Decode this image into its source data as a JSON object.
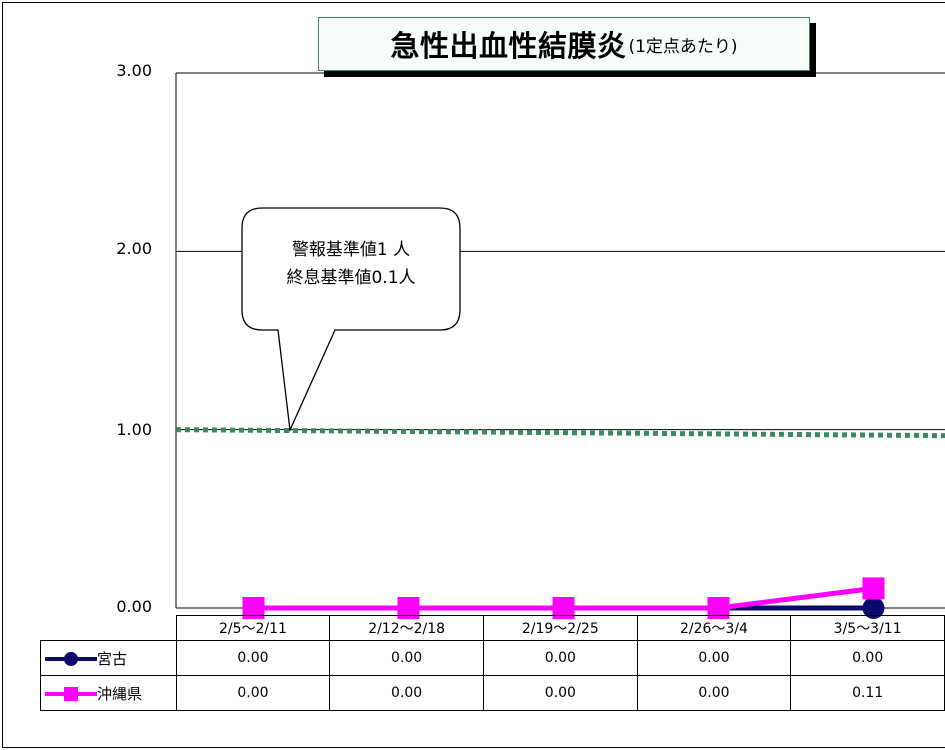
{
  "title": {
    "main": "急性出血性結膜炎",
    "sub": "(1定点あたり)"
  },
  "annotation": {
    "line1": "警報基準値1 人",
    "line2": "終息基準値0.1人"
  },
  "colors": {
    "miyako": "#0a0a6e",
    "okinawa": "#ff00ff",
    "threshold": "#3a8a5c"
  },
  "chart_data": {
    "type": "line",
    "categories": [
      "2/5～2/11",
      "2/12～2/18",
      "2/19～2/25",
      "2/26～3/4",
      "3/5～3/11"
    ],
    "y_ticks": [
      "3.00",
      "2.00",
      "1.00",
      "0.00"
    ],
    "ylim": [
      0,
      3
    ],
    "grid": true,
    "threshold": 1.0,
    "legend_placement": "data-table",
    "series": [
      {
        "name": "宮古",
        "marker": "circle",
        "values": [
          0,
          0,
          0,
          0,
          0
        ]
      },
      {
        "name": "沖縄県",
        "marker": "square",
        "values": [
          0,
          0,
          0,
          0,
          0.11
        ]
      }
    ]
  },
  "table": {
    "rows": [
      {
        "label": "宮古",
        "values": [
          "0.00",
          "0.00",
          "0.00",
          "0.00",
          "0.00"
        ]
      },
      {
        "label": "沖縄県",
        "values": [
          "0.00",
          "0.00",
          "0.00",
          "0.00",
          "0.11"
        ]
      }
    ]
  }
}
